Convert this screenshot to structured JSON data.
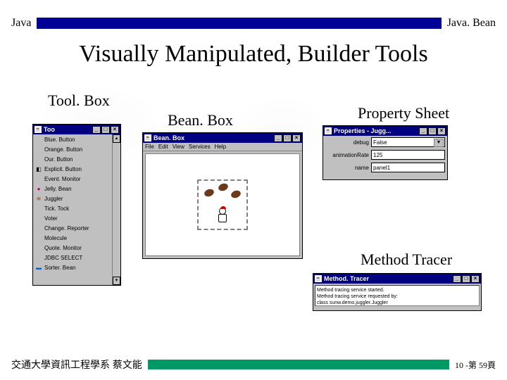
{
  "header": {
    "left": "Java",
    "right": "Java. Bean",
    "bar_color": "#000099"
  },
  "title": "Visually Manipulated, Builder Tools",
  "labels": {
    "toolbox": "Tool. Box",
    "beanbox": "Bean. Box",
    "propsheet": "Property Sheet",
    "tracer": "Method Tracer"
  },
  "toolbox": {
    "title": "Too",
    "items": [
      {
        "label": "Blue. Button",
        "icon": "",
        "color": ""
      },
      {
        "label": "Orange. Button",
        "icon": "",
        "color": ""
      },
      {
        "label": "Our. Button",
        "icon": "",
        "color": ""
      },
      {
        "label": "Explicit. Button",
        "icon": "◧",
        "color": "#000"
      },
      {
        "label": "Event. Monitor",
        "icon": "",
        "color": ""
      },
      {
        "label": "Jelly. Bean",
        "icon": "●",
        "color": "#c00060"
      },
      {
        "label": "Juggler",
        "icon": "≋",
        "color": "#8b4513"
      },
      {
        "label": "Tick. Tock",
        "icon": "",
        "color": ""
      },
      {
        "label": "Voter",
        "icon": "",
        "color": ""
      },
      {
        "label": "Change. Reporter",
        "icon": "",
        "color": ""
      },
      {
        "label": "Molecule",
        "icon": "",
        "color": ""
      },
      {
        "label": "Quote. Monitor",
        "icon": "",
        "color": ""
      },
      {
        "label": "JDBC SELECT",
        "icon": "",
        "color": ""
      },
      {
        "label": "Sorter. Bean",
        "icon": "▬",
        "color": "#0066cc"
      }
    ]
  },
  "beanbox": {
    "title": "Bean. Box",
    "menu": [
      "File",
      "Edit",
      "View",
      "Services",
      "Help"
    ]
  },
  "propsheet": {
    "title": "Properties - Jugg...",
    "rows": [
      {
        "label": "debug",
        "value": "False",
        "type": "dropdown"
      },
      {
        "label": "animationRate",
        "value": "125",
        "type": "text"
      },
      {
        "label": "name",
        "value": "panel1",
        "type": "text"
      }
    ]
  },
  "tracer": {
    "title": "Method. Tracer",
    "lines": [
      "Method tracing service started.",
      "Method tracing service requested by:",
      "class sunw.demo.juggler.Juggler"
    ]
  },
  "footer": {
    "left": "交通大學資訊工程學系 蔡文能",
    "right": "10 -第 59頁",
    "bar_color": "#009966"
  }
}
